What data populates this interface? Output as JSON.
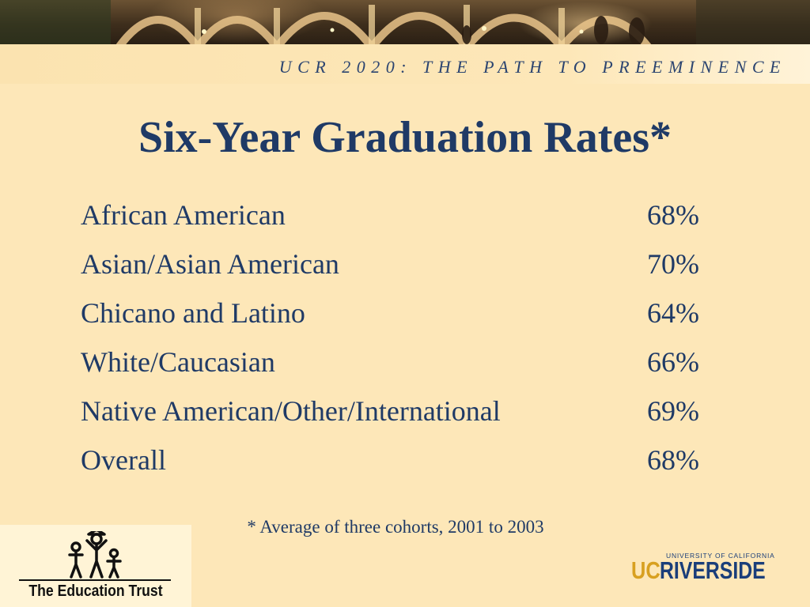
{
  "header": {
    "tagline": "UCR 2020: THE PATH TO PREEMINENCE"
  },
  "slide": {
    "title": "Six-Year Graduation Rates*",
    "rows": [
      {
        "label": "African American",
        "value": "68%"
      },
      {
        "label": "Asian/Asian American",
        "value": "70%"
      },
      {
        "label": "Chicano and Latino",
        "value": "64%"
      },
      {
        "label": "White/Caucasian",
        "value": "66%"
      },
      {
        "label": "Native American/Other/International",
        "value": "69%"
      },
      {
        "label": "Overall",
        "value": "68%"
      }
    ],
    "footnote": "* Average of three cohorts, 2001 to 2003"
  },
  "logos": {
    "education_trust": "The Education Trust",
    "ucr_small": "UNIVERSITY OF CALIFORNIA",
    "ucr_uc": "UC",
    "ucr_name": "RIVERSIDE"
  },
  "colors": {
    "background": "#fde7b8",
    "text": "#1f3a66",
    "ucr_gold": "#d8a020",
    "ucr_blue": "#1a3e7a"
  }
}
